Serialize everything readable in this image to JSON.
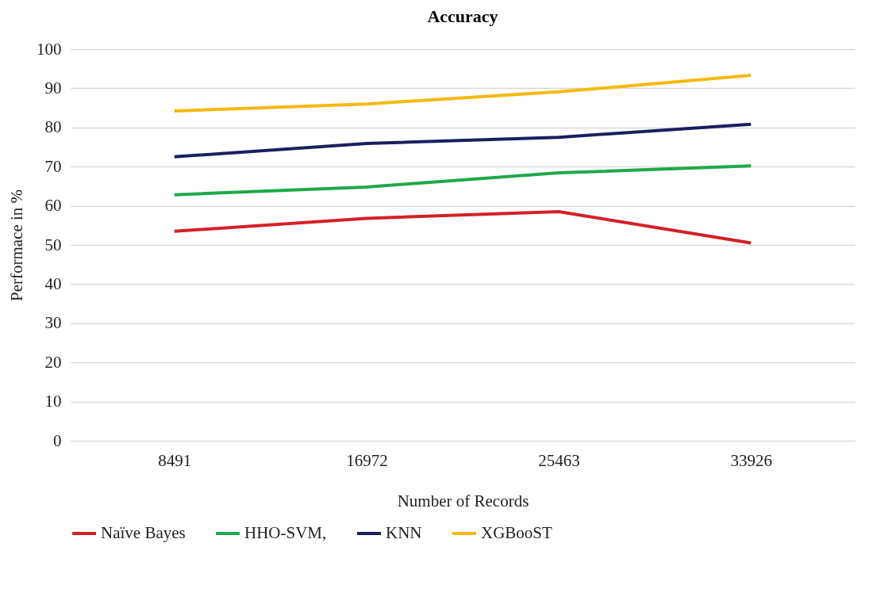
{
  "chart_data": {
    "type": "line",
    "title": "Accuracy",
    "xlabel": "Number of Records",
    "ylabel": "Performace in %",
    "categories": [
      "8491",
      "16972",
      "25463",
      "33926"
    ],
    "series": [
      {
        "name": "Naïve Bayes",
        "color": "#d42027",
        "values": [
          53.5,
          56.8,
          58.5,
          50.5
        ]
      },
      {
        "name": "HHO-SVM,",
        "color": "#1fa84a",
        "values": [
          62.8,
          64.8,
          68.4,
          70.2
        ]
      },
      {
        "name": "KNN",
        "color": "#1a1f5e",
        "values": [
          72.5,
          75.9,
          77.5,
          80.8
        ]
      },
      {
        "name": "XGBooST",
        "color": "#f5b90f",
        "values": [
          84.2,
          86.0,
          89.1,
          93.3
        ]
      }
    ],
    "ylim": [
      0,
      100
    ],
    "yticks": [
      0,
      10,
      20,
      30,
      40,
      50,
      60,
      70,
      80,
      90,
      100
    ],
    "grid": "y",
    "legend": "bottom",
    "marker": "none",
    "line_style": "solid"
  }
}
